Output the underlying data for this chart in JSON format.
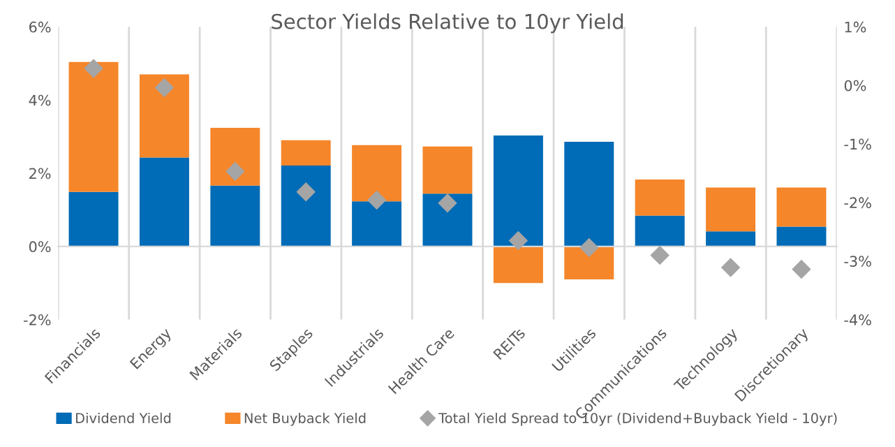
{
  "chart_data": {
    "type": "bar",
    "stacked": true,
    "title": "Sector Yields Relative to 10yr Yield",
    "categories": [
      "Financials",
      "Energy",
      "Materials",
      "Staples",
      "Industrials",
      "Health Care",
      "REITs",
      "Utilities",
      "Communications",
      "Technology",
      "Discretionary"
    ],
    "series": [
      {
        "name": "Dividend Yield",
        "color": "#006bb6",
        "values": [
          1.49,
          2.43,
          1.66,
          2.21,
          1.23,
          1.44,
          3.03,
          2.86,
          0.84,
          0.41,
          0.54
        ]
      },
      {
        "name": "Net Buyback Yield",
        "color": "#f5862a",
        "values": [
          3.55,
          2.27,
          1.58,
          0.69,
          1.54,
          1.29,
          -1.0,
          -0.9,
          0.99,
          1.2,
          1.07
        ]
      },
      {
        "name": "Total Yield Spread to 10yr (Dividend+Buyback Yield - 10yr)",
        "type": "scatter",
        "axis": "y2",
        "color": "#a5a5a5",
        "marker": "diamond",
        "values": [
          0.29,
          -0.04,
          -1.47,
          -1.82,
          -1.96,
          -2.01,
          -2.65,
          -2.77,
          -2.9,
          -3.11,
          -3.14
        ]
      }
    ],
    "ylim": [
      -2,
      6
    ],
    "yticks": [
      {
        "value": -2,
        "label": "-2%"
      },
      {
        "value": 0,
        "label": "0%"
      },
      {
        "value": 2,
        "label": "2%"
      },
      {
        "value": 4,
        "label": "4%"
      },
      {
        "value": 6,
        "label": "6%"
      }
    ],
    "y2lim": [
      -4,
      1
    ],
    "y2ticks": [
      {
        "value": -4,
        "label": "-4%"
      },
      {
        "value": -3,
        "label": "-3%"
      },
      {
        "value": -2,
        "label": "-2%"
      },
      {
        "value": -1,
        "label": "-1%"
      },
      {
        "value": 0,
        "label": "0%"
      },
      {
        "value": 1,
        "label": "1%"
      }
    ],
    "grid": "x",
    "legend": "bottom"
  }
}
